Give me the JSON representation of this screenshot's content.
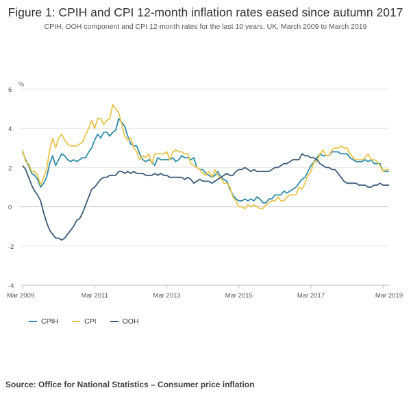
{
  "colors": {
    "cpih": "#2D8CA6",
    "cpi": "#E8C44C",
    "ooh": "#3A5A78"
  },
  "chart_data": {
    "type": "line",
    "title": "Figure 1: CPIH and CPI 12-month inflation rates eased since autumn 2017",
    "subtitle": "CPIH, OOH component and CPI 12-month rates for the last 10 years, UK, March 2009 to March 2019",
    "ylabel": "%",
    "ylim": [
      -4,
      6
    ],
    "yticks": [
      "6",
      "4",
      "2",
      "0",
      "-2",
      "-4"
    ],
    "x_start": "Mar 2009",
    "x_end": "Mar 2019",
    "xticks": [
      "Mar 2009",
      "Mar 2011",
      "Mar 2013",
      "Mar 2015",
      "Mar 2017",
      "Mar 2019"
    ],
    "grid": true,
    "legend": "bottom-left",
    "source": "Source: Office for National Statistics – Consumer price inflation",
    "series": [
      {
        "name": "CPIH",
        "key": "cpih",
        "values": [
          2.8,
          2.4,
          2.1,
          1.7,
          1.6,
          1.4,
          1.0,
          1.2,
          1.5,
          2.2,
          2.6,
          2.1,
          2.4,
          2.7,
          2.6,
          2.4,
          2.3,
          2.4,
          2.3,
          2.4,
          2.5,
          2.5,
          2.8,
          3.0,
          3.4,
          3.7,
          3.5,
          3.8,
          3.8,
          3.6,
          3.8,
          3.9,
          4.5,
          4.3,
          4.1,
          3.6,
          3.2,
          3.1,
          3.1,
          2.7,
          2.4,
          2.3,
          2.4,
          2.3,
          2.1,
          2.5,
          2.4,
          2.4,
          2.4,
          2.4,
          2.5,
          2.3,
          2.4,
          2.6,
          2.5,
          2.5,
          2.4,
          2.5,
          2.0,
          1.9,
          1.9,
          1.7,
          1.6,
          1.5,
          1.6,
          1.8,
          1.5,
          1.4,
          1.3,
          0.9,
          0.6,
          0.4,
          0.3,
          0.3,
          0.4,
          0.3,
          0.4,
          0.3,
          0.5,
          0.4,
          0.2,
          0.2,
          0.4,
          0.4,
          0.6,
          0.6,
          0.6,
          0.8,
          0.7,
          0.8,
          0.9,
          1.0,
          1.2,
          1.4,
          1.5,
          1.8,
          2.1,
          2.3,
          2.5,
          2.7,
          2.6,
          2.6,
          2.6,
          2.8,
          2.8,
          2.8,
          2.7,
          2.7,
          2.7,
          2.5,
          2.4,
          2.3,
          2.3,
          2.3,
          2.4,
          2.3,
          2.4,
          2.2,
          2.2,
          2.2,
          1.8,
          1.8,
          1.8
        ]
      },
      {
        "name": "CPI",
        "key": "cpi",
        "values": [
          2.9,
          2.3,
          2.2,
          1.8,
          1.8,
          1.6,
          1.1,
          1.5,
          1.9,
          2.9,
          3.5,
          3.0,
          3.5,
          3.7,
          3.4,
          3.2,
          3.1,
          3.1,
          3.1,
          3.2,
          3.3,
          3.7,
          4.0,
          4.4,
          4.0,
          4.5,
          4.5,
          4.2,
          4.4,
          4.5,
          5.2,
          5.0,
          4.8,
          4.2,
          3.6,
          3.4,
          3.5,
          3.0,
          2.8,
          2.4,
          2.6,
          2.5,
          2.7,
          2.2,
          2.7,
          2.7,
          2.7,
          2.7,
          2.8,
          2.4,
          2.8,
          2.9,
          2.8,
          2.8,
          2.7,
          2.7,
          2.2,
          2.1,
          2.0,
          1.9,
          1.7,
          1.6,
          1.8,
          1.5,
          1.9,
          1.6,
          1.5,
          1.2,
          1.2,
          1.0,
          0.5,
          0.3,
          0.0,
          0.0,
          -0.1,
          0.1,
          0.0,
          0.1,
          0.0,
          -0.1,
          -0.1,
          0.1,
          0.2,
          0.3,
          0.3,
          0.5,
          0.3,
          0.3,
          0.5,
          0.6,
          0.6,
          0.6,
          1.0,
          0.9,
          1.2,
          1.6,
          1.8,
          2.3,
          2.3,
          2.7,
          2.9,
          2.6,
          2.6,
          2.9,
          3.0,
          3.0,
          3.1,
          3.0,
          3.0,
          2.7,
          2.5,
          2.4,
          2.4,
          2.4,
          2.5,
          2.7,
          2.4,
          2.4,
          2.3,
          2.1,
          1.8,
          1.9,
          1.9
        ]
      },
      {
        "name": "OOH",
        "key": "ooh",
        "values": [
          2.1,
          1.9,
          1.5,
          1.1,
          0.8,
          0.6,
          0.3,
          -0.3,
          -0.8,
          -1.2,
          -1.4,
          -1.6,
          -1.6,
          -1.7,
          -1.6,
          -1.4,
          -1.2,
          -1.0,
          -0.7,
          -0.6,
          -0.3,
          0.1,
          0.5,
          0.9,
          1.0,
          1.2,
          1.4,
          1.5,
          1.5,
          1.6,
          1.6,
          1.6,
          1.8,
          1.8,
          1.7,
          1.8,
          1.7,
          1.8,
          1.7,
          1.7,
          1.7,
          1.6,
          1.6,
          1.6,
          1.7,
          1.6,
          1.7,
          1.6,
          1.6,
          1.5,
          1.5,
          1.5,
          1.5,
          1.5,
          1.4,
          1.5,
          1.4,
          1.2,
          1.3,
          1.4,
          1.3,
          1.3,
          1.3,
          1.2,
          1.3,
          1.4,
          1.5,
          1.6,
          1.7,
          1.6,
          1.6,
          1.8,
          1.9,
          1.9,
          2.0,
          1.9,
          1.8,
          1.9,
          1.8,
          1.8,
          1.8,
          1.8,
          1.8,
          1.9,
          2.0,
          2.0,
          2.1,
          2.2,
          2.2,
          2.3,
          2.4,
          2.4,
          2.4,
          2.7,
          2.6,
          2.6,
          2.5,
          2.5,
          2.4,
          2.2,
          2.1,
          2.0,
          2.0,
          1.9,
          1.9,
          1.7,
          1.5,
          1.3,
          1.2,
          1.2,
          1.2,
          1.2,
          1.1,
          1.1,
          1.1,
          1.0,
          1.0,
          1.1,
          1.1,
          1.2,
          1.1,
          1.1,
          1.1
        ]
      }
    ]
  }
}
